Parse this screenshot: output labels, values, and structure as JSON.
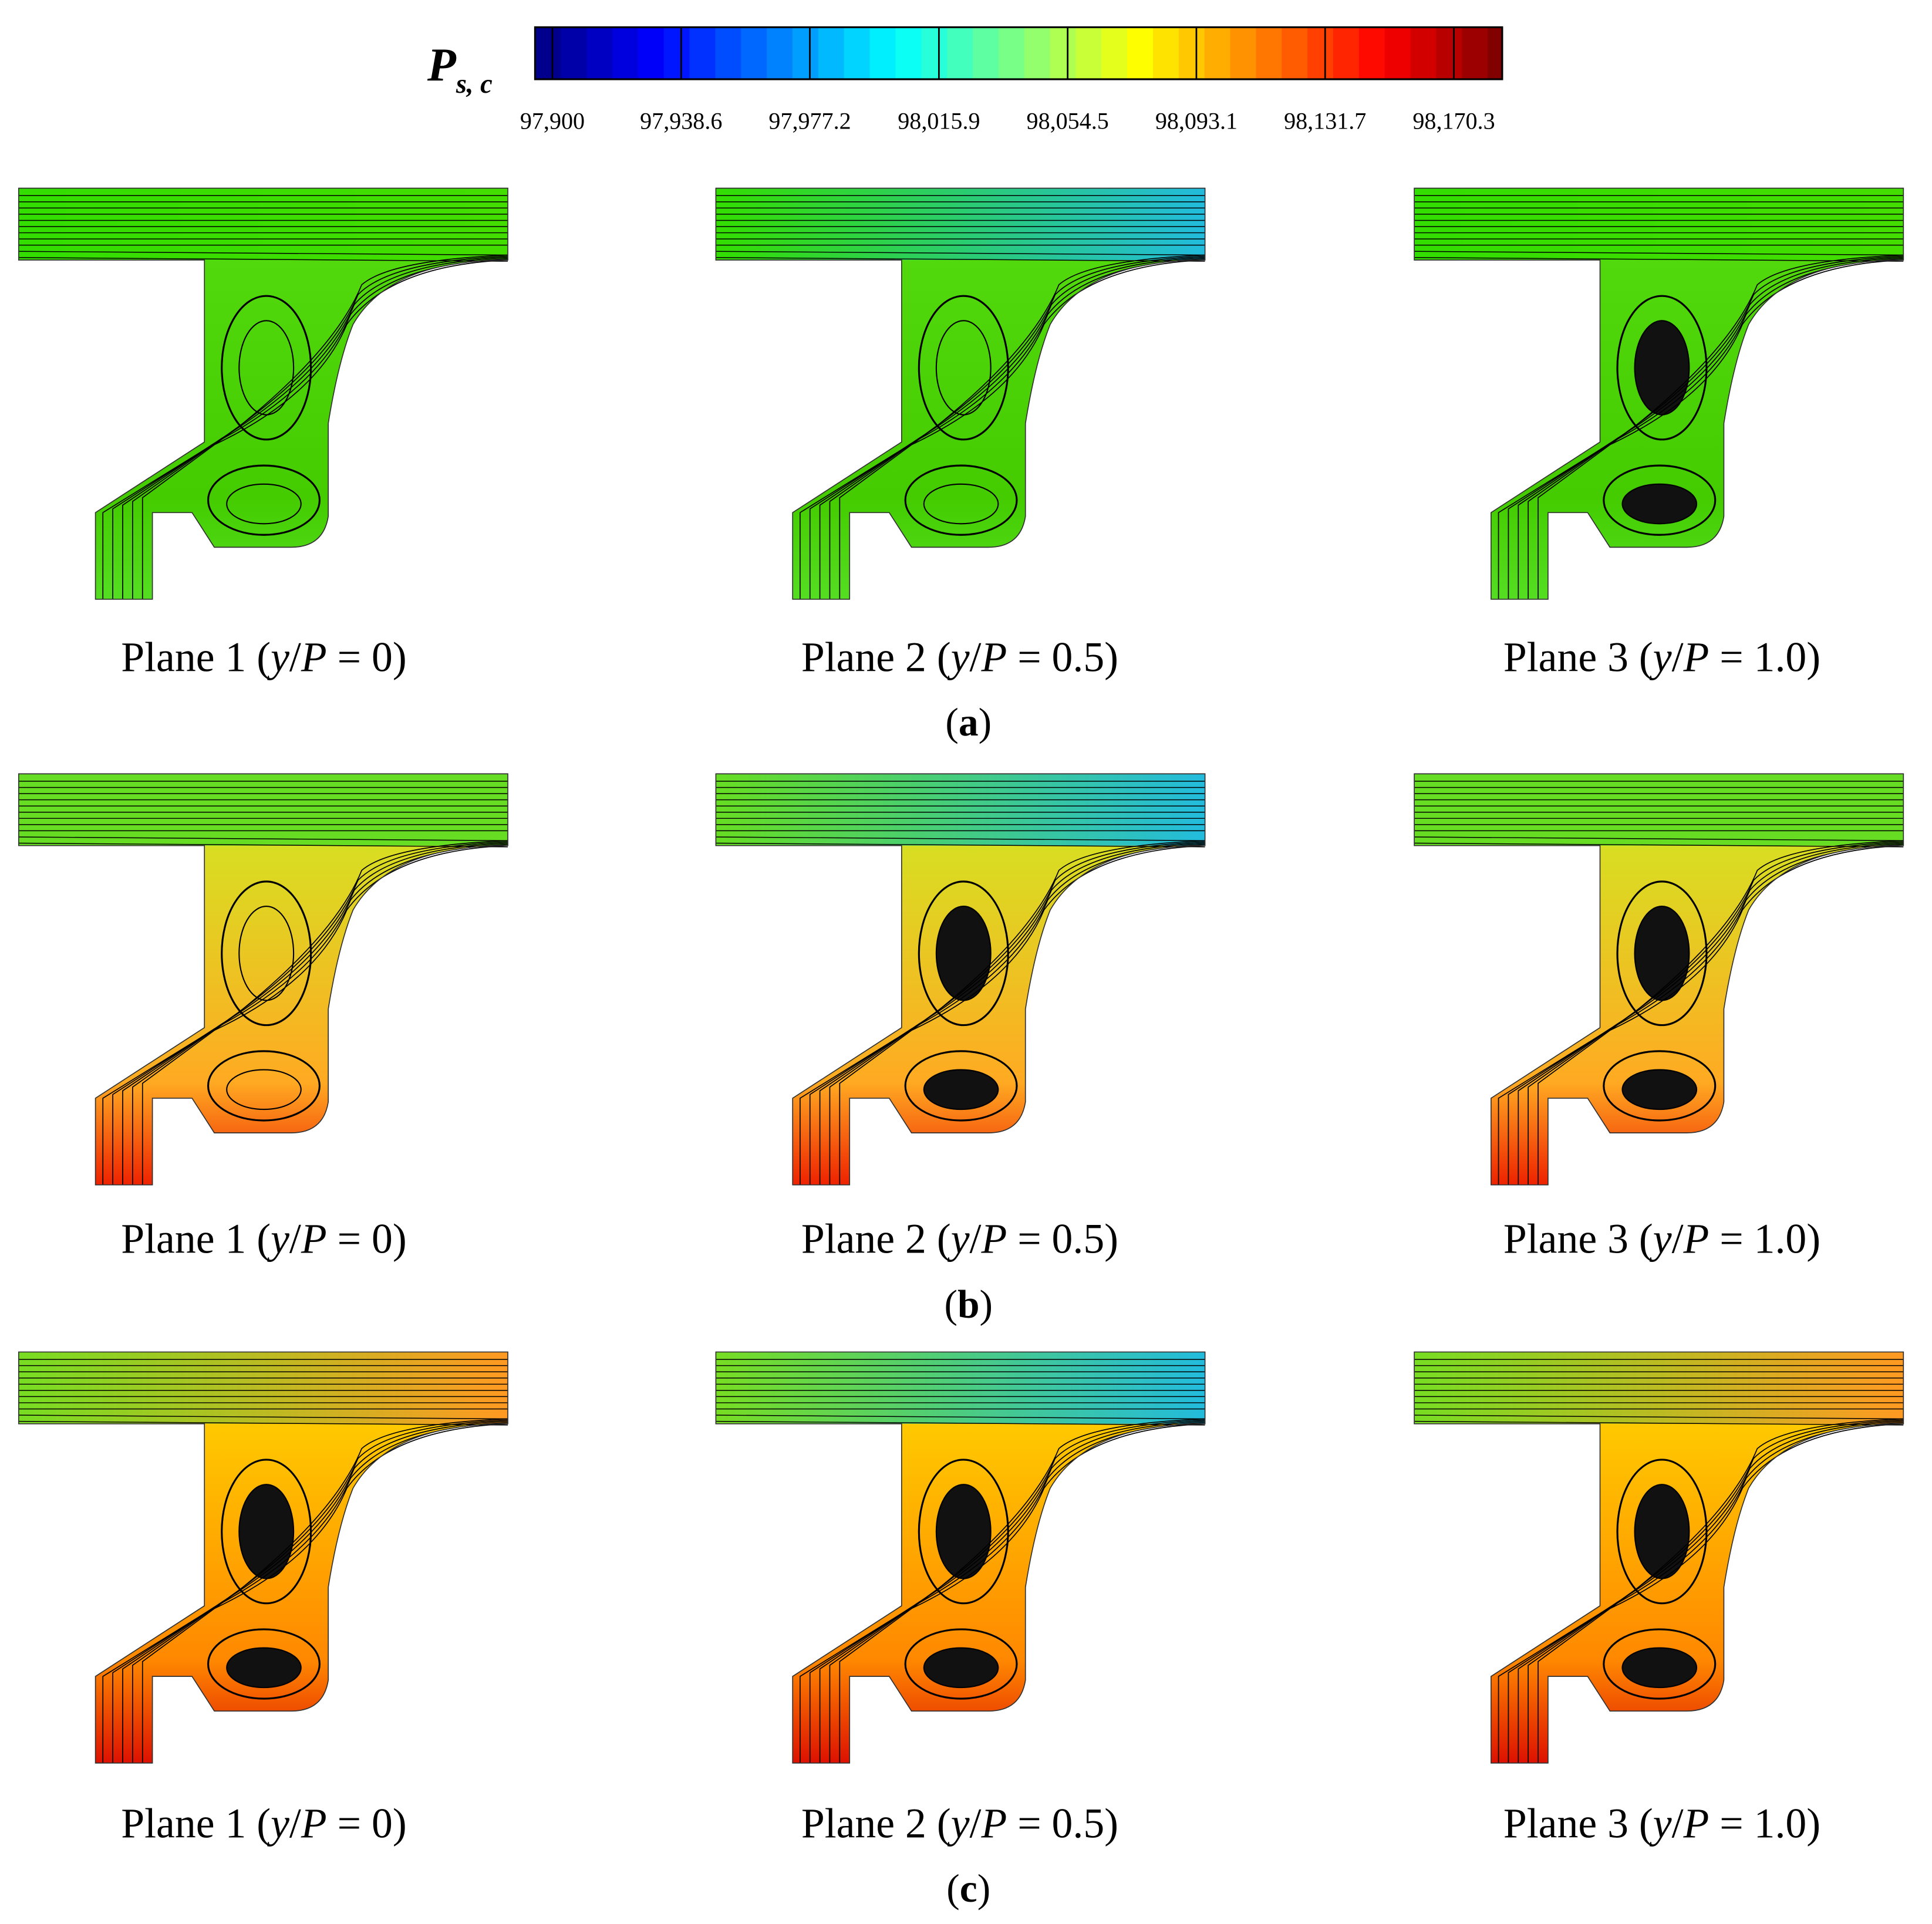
{
  "colorbar": {
    "title": "P",
    "subscript": "s, c",
    "range": [
      97894.8,
      98184.8
    ],
    "ticks": [
      {
        "value": 97900,
        "label": "97,900"
      },
      {
        "value": 97938.6,
        "label": "97,938.6"
      },
      {
        "value": 97977.2,
        "label": "97,977.2"
      },
      {
        "value": 98015.9,
        "label": "98,015.9"
      },
      {
        "value": 98054.5,
        "label": "98,054.5"
      },
      {
        "value": 98093.1,
        "label": "98,093.1"
      },
      {
        "value": 98131.7,
        "label": "98,131.7"
      },
      {
        "value": 98170.3,
        "label": "98,170.3"
      }
    ]
  },
  "rows": [
    {
      "label": "(a)",
      "panels": [
        {
          "caption": "Plane 1 (y/P = 0)"
        },
        {
          "caption": "Plane 2 (y/P = 0.5)"
        },
        {
          "caption": "Plane 3 (y/P = 1.0)"
        }
      ]
    },
    {
      "label": "(b)",
      "panels": [
        {
          "caption": "Plane 1 (y/P = 0)"
        },
        {
          "caption": "Plane 2 (y/P = 0.5)"
        },
        {
          "caption": "Plane 3 (y/P = 1.0)"
        }
      ]
    },
    {
      "label": "(c)",
      "panels": [
        {
          "caption": "Plane 1 (y/P = 0)"
        },
        {
          "caption": "Plane 2 (y/P = 0.5)"
        },
        {
          "caption": "Plane 3 (y/P = 1.0)"
        }
      ]
    }
  ]
}
